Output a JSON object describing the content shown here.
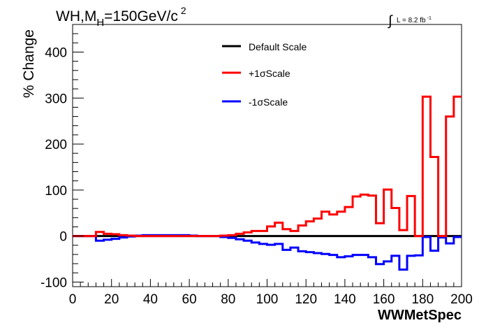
{
  "chart_data": {
    "type": "line",
    "title_main": "WH,M",
    "title_sub": "H",
    "title_rest": "=150GeV/c",
    "title_sup": "2",
    "lumi_prefix": "L = 8.2 fb",
    "lumi_sup": "-1",
    "xlabel": "WWMetSpec",
    "ylabel": "% Change",
    "xlim": [
      0,
      200
    ],
    "ylim": [
      -110,
      460
    ],
    "xticks": [
      0,
      20,
      40,
      60,
      80,
      100,
      120,
      140,
      160,
      180,
      200
    ],
    "yticks": [
      -100,
      0,
      100,
      200,
      300,
      400
    ],
    "bin_edges": [
      0,
      4,
      8,
      12,
      16,
      20,
      24,
      28,
      32,
      36,
      40,
      44,
      48,
      52,
      56,
      60,
      64,
      68,
      72,
      76,
      80,
      84,
      88,
      92,
      96,
      100,
      104,
      108,
      112,
      116,
      120,
      124,
      128,
      132,
      136,
      140,
      144,
      148,
      152,
      156,
      160,
      164,
      168,
      172,
      176,
      180,
      184,
      188,
      192,
      196,
      200
    ],
    "legend_position": "top-center",
    "series": [
      {
        "name": "Default Scale",
        "color": "#000000",
        "values": [
          0,
          0,
          0,
          0,
          0,
          0,
          0,
          0,
          0,
          0,
          0,
          0,
          0,
          0,
          0,
          0,
          0,
          0,
          0,
          0,
          0,
          0,
          0,
          0,
          0,
          0,
          0,
          0,
          0,
          0,
          0,
          0,
          0,
          0,
          0,
          0,
          0,
          0,
          0,
          0,
          0,
          0,
          0,
          0,
          0,
          0,
          0,
          0,
          0,
          0
        ]
      },
      {
        "name": "+1σScale",
        "color": "#ff0000",
        "values": [
          0,
          0,
          0,
          9,
          5,
          4,
          2,
          1,
          0,
          0,
          0,
          0,
          0,
          0,
          0,
          0,
          0,
          0,
          0,
          1,
          2,
          5,
          8,
          11,
          11,
          21,
          29,
          15,
          11,
          23,
          32,
          38,
          53,
          47,
          53,
          63,
          86,
          90,
          88,
          28,
          101,
          61,
          13,
          87,
          0,
          303,
          172,
          0,
          260,
          303
        ]
      },
      {
        "name": "-1σScale",
        "color": "#0000ff",
        "values": [
          0,
          0,
          0,
          -10,
          -8,
          -6,
          -3,
          -1,
          1,
          2,
          2,
          2,
          2,
          2,
          2,
          1,
          0,
          0,
          0,
          -2,
          -4,
          -7,
          -10,
          -14,
          -17,
          -19,
          -17,
          -30,
          -25,
          -33,
          -35,
          -37,
          -39,
          -41,
          -46,
          -44,
          -41,
          -41,
          -46,
          -61,
          -55,
          -43,
          -73,
          -43,
          -42,
          -2,
          -32,
          -3,
          -16,
          -2
        ]
      }
    ]
  }
}
